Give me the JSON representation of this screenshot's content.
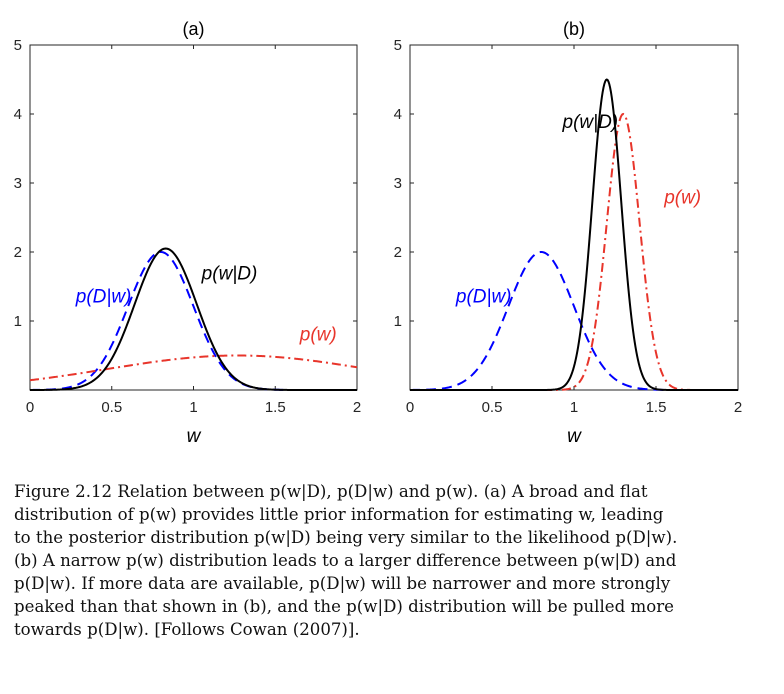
{
  "figure": {
    "chart_data": [
      {
        "type": "line",
        "title": "(a)",
        "xlabel": "w",
        "ylabel": "",
        "xlim": [
          0,
          2
        ],
        "ylim": [
          0,
          5
        ],
        "xticks": [
          "0",
          "0.5",
          "1",
          "1.5",
          "2"
        ],
        "yticks": [
          "1",
          "2",
          "3",
          "4",
          "5"
        ],
        "series": [
          {
            "name": "p(D|w)",
            "color": "#0000ff",
            "style": "dashed",
            "shape": "gaussian",
            "mean": 0.8,
            "sd": 0.2,
            "peak": 2.0
          },
          {
            "name": "p(w)",
            "color": "#e8352b",
            "style": "dash-dot",
            "shape": "gaussian",
            "mean": 1.27,
            "sd": 0.8,
            "peak": 0.5
          },
          {
            "name": "p(w|D)",
            "color": "#000000",
            "style": "solid",
            "shape": "gaussian",
            "mean": 0.83,
            "sd": 0.19,
            "peak": 2.05
          }
        ],
        "labels": [
          {
            "text": "p(D|w)",
            "color": "#0000ff",
            "x": 0.28,
            "y": 1.27
          },
          {
            "text": "p(w|D)",
            "color": "#000000",
            "x": 1.05,
            "y": 1.6
          },
          {
            "text": "p(w)",
            "color": "#e8352b",
            "x": 1.65,
            "y": 0.72
          }
        ]
      },
      {
        "type": "line",
        "title": "(b)",
        "xlabel": "w",
        "ylabel": "",
        "xlim": [
          0,
          2
        ],
        "ylim": [
          0,
          5
        ],
        "xticks": [
          "0",
          "0.5",
          "1",
          "1.5",
          "2"
        ],
        "yticks": [
          "1",
          "2",
          "3",
          "4",
          "5"
        ],
        "series": [
          {
            "name": "p(D|w)",
            "color": "#0000ff",
            "style": "dashed",
            "shape": "gaussian",
            "mean": 0.8,
            "sd": 0.2,
            "peak": 2.0
          },
          {
            "name": "p(w)",
            "color": "#e8352b",
            "style": "dash-dot",
            "shape": "gaussian",
            "mean": 1.3,
            "sd": 0.1,
            "peak": 4.0
          },
          {
            "name": "p(w|D)",
            "color": "#000000",
            "style": "solid",
            "shape": "gaussian",
            "mean": 1.2,
            "sd": 0.088,
            "peak": 4.5
          }
        ],
        "labels": [
          {
            "text": "p(D|w)",
            "color": "#0000ff",
            "x": 0.28,
            "y": 1.27
          },
          {
            "text": "p(w|D)",
            "color": "#000000",
            "x": 0.93,
            "y": 3.8
          },
          {
            "text": "p(w)",
            "color": "#e8352b",
            "x": 1.55,
            "y": 2.7
          }
        ]
      }
    ]
  },
  "caption": {
    "lines": [
      "Figure 2.12 Relation between p(w|D), p(D|w) and p(w). (a) A broad and flat",
      "distribution of p(w) provides little prior information for estimating w, leading",
      "to the posterior distribution p(w|D) being very similar to the likelihood p(D|w).",
      "(b) A narrow p(w) distribution leads to a larger difference between p(w|D) and",
      "p(D|w). If more data are available, p(D|w) will be narrower and more strongly",
      "peaked than that shown in (b), and the p(w|D) distribution will be pulled more",
      "towards p(D|w). [Follows Cowan (2007)]."
    ]
  }
}
